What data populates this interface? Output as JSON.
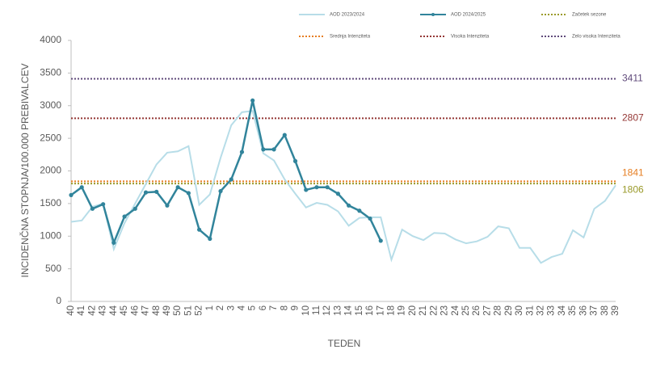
{
  "chart_data": {
    "type": "line",
    "x_label": "TEDEN",
    "y_label": "INCIDENČNA  STOPNJA/100.000  PREBIVALCEV",
    "categories": [
      "40",
      "41",
      "42",
      "43",
      "44",
      "45",
      "46",
      "47",
      "48",
      "49",
      "50",
      "51",
      "52",
      "1",
      "2",
      "3",
      "4",
      "5",
      "6",
      "7",
      "8",
      "9",
      "10",
      "11",
      "12",
      "13",
      "14",
      "15",
      "16",
      "17",
      "18",
      "19",
      "20",
      "21",
      "22",
      "23",
      "24",
      "25",
      "26",
      "27",
      "28",
      "29",
      "30",
      "31",
      "32",
      "33",
      "34",
      "35",
      "36",
      "37",
      "38",
      "39"
    ],
    "series": [
      {
        "name": "AOD 2023/2024",
        "color": "#b7dde8",
        "markers": false,
        "values": [
          1220,
          1240,
          1450,
          1500,
          800,
          1200,
          1500,
          1800,
          2100,
          2280,
          2300,
          2380,
          1480,
          1640,
          2200,
          2700,
          2900,
          2920,
          2270,
          2160,
          1870,
          1650,
          1440,
          1510,
          1480,
          1380,
          1160,
          1280,
          1290,
          1290,
          640,
          1100,
          1000,
          940,
          1050,
          1040,
          950,
          890,
          920,
          990,
          1150,
          1120,
          820,
          820,
          590,
          680,
          730,
          1090,
          980,
          1420,
          1540,
          1780
        ]
      },
      {
        "name": "AOD 2024/2025",
        "color": "#31849b",
        "markers": true,
        "values": [
          1630,
          1750,
          1420,
          1490,
          900,
          1300,
          1420,
          1670,
          1680,
          1470,
          1750,
          1660,
          1100,
          960,
          1690,
          1870,
          2290,
          3080,
          2330,
          2330,
          2550,
          2150,
          1710,
          1750,
          1750,
          1650,
          1470,
          1390,
          1270,
          930,
          null,
          null,
          null,
          null,
          null,
          null,
          null,
          null,
          null,
          null,
          null,
          null,
          null,
          null,
          null,
          null,
          null,
          null,
          null,
          null,
          null,
          null
        ]
      }
    ],
    "thresholds": [
      {
        "name": "Začetek sezone",
        "value": 1806,
        "color": "#9a9a2a"
      },
      {
        "name": "Srednja Intenziteta",
        "value": 1841,
        "color": "#e67e22"
      },
      {
        "name": "Visoka Intenziteta",
        "value": 2807,
        "color": "#943634"
      },
      {
        "name": "Zelo visoka Intenziteta",
        "value": 3411,
        "color": "#5f497a"
      }
    ],
    "ylim": [
      0,
      4000
    ],
    "yticks": [
      0,
      500,
      1000,
      1500,
      2000,
      2500,
      3000,
      3500,
      4000
    ]
  }
}
